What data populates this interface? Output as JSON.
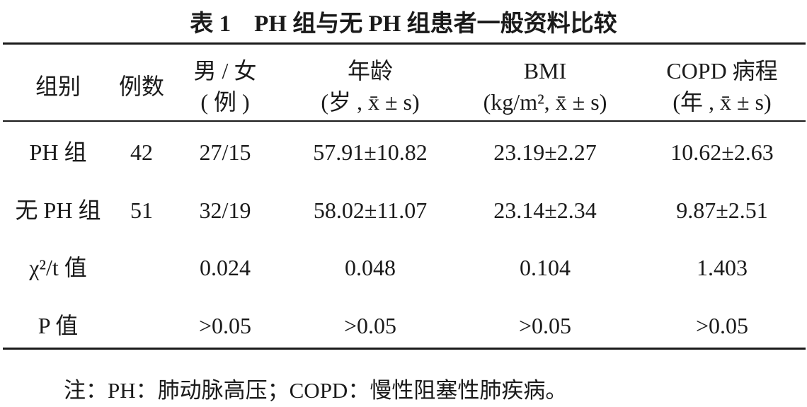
{
  "title": "表 1　PH 组与无 PH 组患者一般资料比较",
  "table": {
    "header": [
      [
        "组别"
      ],
      [
        "例数"
      ],
      [
        "男 / 女",
        "( 例 )"
      ],
      [
        "年龄",
        "(岁 , x̄ ± s)"
      ],
      [
        "BMI",
        "(kg/m², x̄ ± s)"
      ],
      [
        "COPD 病程",
        "(年 , x̄ ± s)"
      ]
    ],
    "rows": [
      [
        "PH 组",
        "42",
        "27/15",
        "57.91±10.82",
        "23.19±2.27",
        "10.62±2.63"
      ],
      [
        "无 PH 组",
        "51",
        "32/19",
        "58.02±11.07",
        "23.14±2.34",
        "9.87±2.51"
      ],
      [
        "χ²/t 值",
        null,
        "0.024",
        "0.048",
        "0.104",
        "1.403"
      ],
      [
        "P 值",
        null,
        ">0.05",
        ">0.05",
        ">0.05",
        ">0.05"
      ]
    ]
  },
  "note": "注：PH：肺动脉高压；COPD：慢性阻塞性肺疾病。"
}
